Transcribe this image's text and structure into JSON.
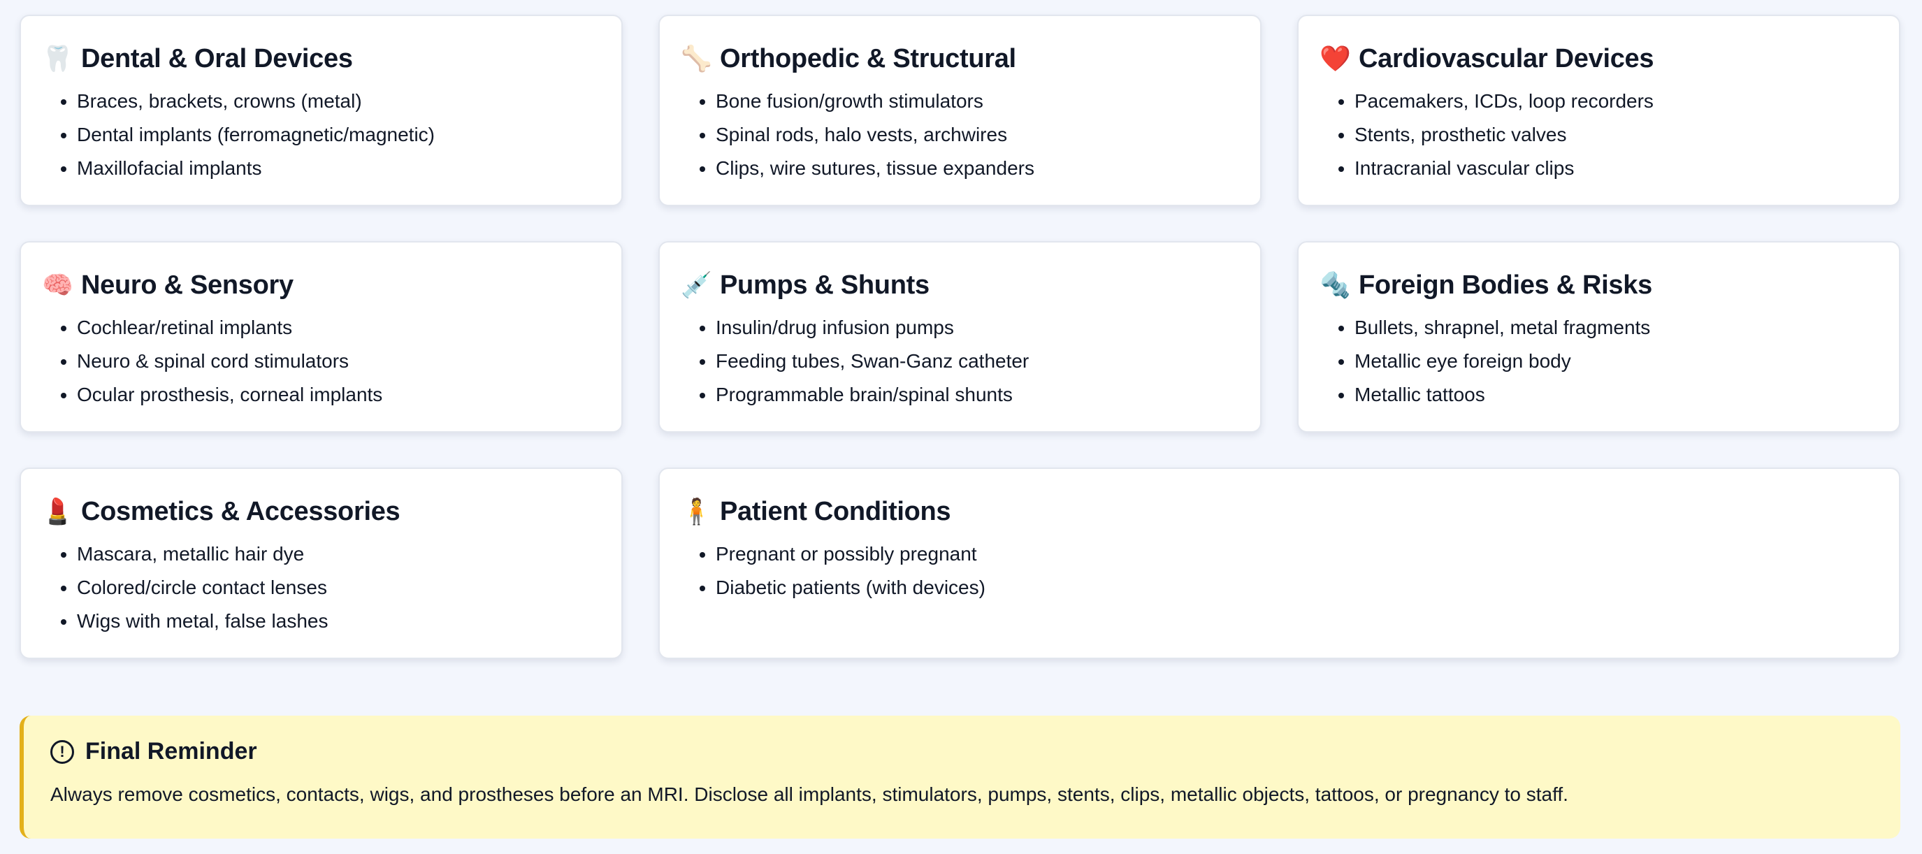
{
  "cards": [
    {
      "icon": "🦷",
      "icon_name": "tooth-icon",
      "title": "Dental & Oral Devices",
      "items": [
        "Braces, brackets, crowns (metal)",
        "Dental implants (ferromagnetic/magnetic)",
        "Maxillofacial implants"
      ]
    },
    {
      "icon": "🦴",
      "icon_name": "bone-icon",
      "title": "Orthopedic & Structural",
      "items": [
        "Bone fusion/growth stimulators",
        "Spinal rods, halo vests, archwires",
        "Clips, wire sutures, tissue expanders"
      ]
    },
    {
      "icon": "❤️",
      "icon_name": "heart-icon",
      "title": "Cardiovascular Devices",
      "items": [
        "Pacemakers, ICDs, loop recorders",
        "Stents, prosthetic valves",
        "Intracranial vascular clips"
      ]
    },
    {
      "icon": "🧠",
      "icon_name": "brain-icon",
      "title": "Neuro & Sensory",
      "items": [
        "Cochlear/retinal implants",
        "Neuro & spinal cord stimulators",
        "Ocular prosthesis, corneal implants"
      ]
    },
    {
      "icon": "💉",
      "icon_name": "syringe-icon",
      "title": "Pumps & Shunts",
      "items": [
        "Insulin/drug infusion pumps",
        "Feeding tubes, Swan-Ganz catheter",
        "Programmable brain/spinal shunts"
      ]
    },
    {
      "icon": "🔩",
      "icon_name": "nut-and-bolt-icon",
      "title": "Foreign Bodies & Risks",
      "items": [
        "Bullets, shrapnel, metal fragments",
        "Metallic eye foreign body",
        "Metallic tattoos"
      ]
    },
    {
      "icon": "💄",
      "icon_name": "lipstick-icon",
      "title": "Cosmetics & Accessories",
      "items": [
        "Mascara, metallic hair dye",
        "Colored/circle contact lenses",
        "Wigs with metal, false lashes"
      ]
    },
    {
      "icon": "🧍",
      "icon_name": "person-standing-icon",
      "title": "Patient Conditions",
      "items": [
        "Pregnant or possibly pregnant",
        "Diabetic patients (with devices)"
      ]
    }
  ],
  "reminder": {
    "icon": "!",
    "title": "Final Reminder",
    "text": "Always remove cosmetics, contacts, wigs, and prostheses before an MRI. Disclose all implants, stimulators, pumps, stents, clips, metallic objects, tattoos, or pregnancy to staff.",
    "accent": "#e3b01a",
    "background": "#fef9c7"
  }
}
